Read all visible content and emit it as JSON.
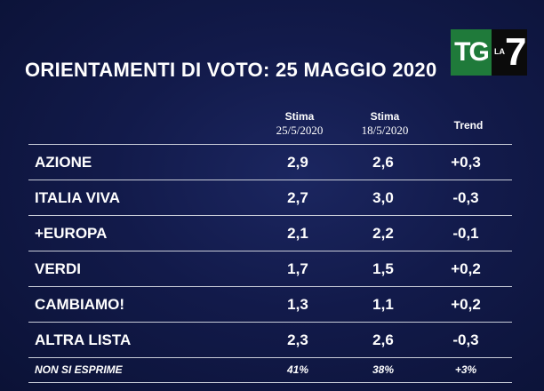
{
  "title": "ORIENTAMENTI DI VOTO: 25 MAGGIO 2020",
  "logo": {
    "tg": "TG",
    "la": "LA",
    "seven": "7"
  },
  "columns": {
    "col1": {
      "label": "Stima",
      "date": "25/5/2020"
    },
    "col2": {
      "label": "Stima",
      "date": "18/5/2020"
    },
    "col3": {
      "label": "Trend"
    }
  },
  "rows": [
    {
      "name": "AZIONE",
      "v1": "2,9",
      "v2": "2,6",
      "trend": "+0,3"
    },
    {
      "name": "ITALIA VIVA",
      "v1": "2,7",
      "v2": "3,0",
      "trend": "-0,3"
    },
    {
      "name": "+EUROPA",
      "v1": "2,1",
      "v2": "2,2",
      "trend": "-0,1"
    },
    {
      "name": "VERDI",
      "v1": "1,7",
      "v2": "1,5",
      "trend": "+0,2"
    },
    {
      "name": "CAMBIAMO!",
      "v1": "1,3",
      "v2": "1,1",
      "trend": "+0,2"
    },
    {
      "name": "ALTRA LISTA",
      "v1": "2,3",
      "v2": "2,6",
      "trend": "-0,3"
    }
  ],
  "footer_row": {
    "name": "NON SI ESPRIME",
    "v1": "41%",
    "v2": "38%",
    "trend": "+3%"
  },
  "colors": {
    "background": "#121a4a",
    "logo_green": "#1f7a3a",
    "text": "#ffffff"
  }
}
